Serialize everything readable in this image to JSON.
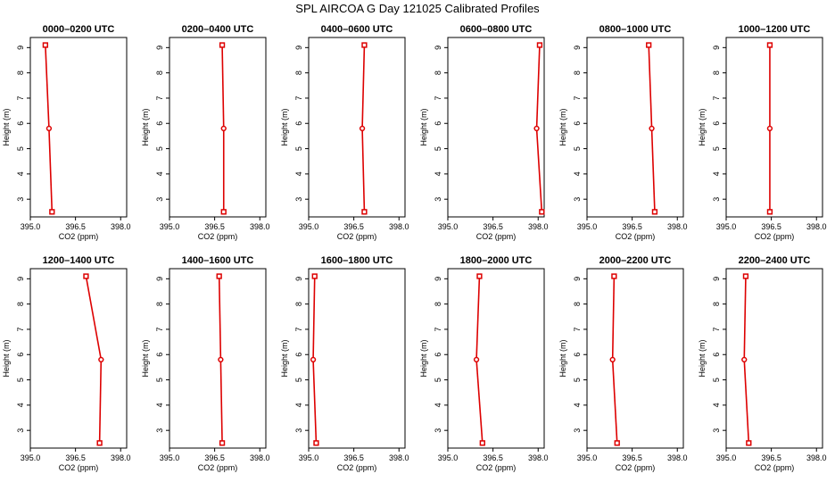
{
  "title": "SPL AIRCOA G  Day 121025  Calibrated Profiles",
  "colors": {
    "series": "#dd0000",
    "axis": "#000000",
    "background": "#ffffff"
  },
  "chart_data": [
    {
      "type": "line",
      "title": "0000–0200 UTC",
      "xlabel": "CO2 (ppm)",
      "ylabel": "Height (m)",
      "xlim": [
        395.0,
        398.2
      ],
      "ylim": [
        2.3,
        9.4
      ],
      "xticks": [
        "395.0",
        "396.5",
        "398.0"
      ],
      "yticks": [
        "3",
        "4",
        "5",
        "6",
        "7",
        "8",
        "9"
      ],
      "x": [
        395.5,
        395.62,
        395.72
      ],
      "y": [
        9.1,
        5.8,
        2.5
      ]
    },
    {
      "type": "line",
      "title": "0200–0400 UTC",
      "xlabel": "CO2 (ppm)",
      "ylabel": "Height (m)",
      "xlim": [
        395.0,
        398.2
      ],
      "ylim": [
        2.3,
        9.4
      ],
      "xticks": [
        "395.0",
        "396.5",
        "398.0"
      ],
      "yticks": [
        "3",
        "4",
        "5",
        "6",
        "7",
        "8",
        "9"
      ],
      "x": [
        396.75,
        396.8,
        396.8
      ],
      "y": [
        9.1,
        5.8,
        2.5
      ]
    },
    {
      "type": "line",
      "title": "0400–0600 UTC",
      "xlabel": "CO2 (ppm)",
      "ylabel": "Height (m)",
      "xlim": [
        395.0,
        398.2
      ],
      "ylim": [
        2.3,
        9.4
      ],
      "xticks": [
        "395.0",
        "396.5",
        "398.0"
      ],
      "yticks": [
        "3",
        "4",
        "5",
        "6",
        "7",
        "8",
        "9"
      ],
      "x": [
        396.85,
        396.78,
        396.85
      ],
      "y": [
        9.1,
        5.8,
        2.5
      ]
    },
    {
      "type": "line",
      "title": "0600–0800 UTC",
      "xlabel": "CO2 (ppm)",
      "ylabel": "Height (m)",
      "xlim": [
        395.0,
        398.2
      ],
      "ylim": [
        2.3,
        9.4
      ],
      "xticks": [
        "395.0",
        "396.5",
        "398.0"
      ],
      "yticks": [
        "3",
        "4",
        "5",
        "6",
        "7",
        "8",
        "9"
      ],
      "x": [
        398.05,
        397.95,
        398.12
      ],
      "y": [
        9.1,
        5.8,
        2.5
      ]
    },
    {
      "type": "line",
      "title": "0800–1000 UTC",
      "xlabel": "CO2 (ppm)",
      "ylabel": "Height (m)",
      "xlim": [
        395.0,
        398.2
      ],
      "ylim": [
        2.3,
        9.4
      ],
      "xticks": [
        "395.0",
        "396.5",
        "398.0"
      ],
      "yticks": [
        "3",
        "4",
        "5",
        "6",
        "7",
        "8",
        "9"
      ],
      "x": [
        397.05,
        397.15,
        397.25
      ],
      "y": [
        9.1,
        5.8,
        2.5
      ]
    },
    {
      "type": "line",
      "title": "1000–1200 UTC",
      "xlabel": "CO2 (ppm)",
      "ylabel": "Height (m)",
      "xlim": [
        395.0,
        398.2
      ],
      "ylim": [
        2.3,
        9.4
      ],
      "xticks": [
        "395.0",
        "396.5",
        "398.0"
      ],
      "yticks": [
        "3",
        "4",
        "5",
        "6",
        "7",
        "8",
        "9"
      ],
      "x": [
        396.45,
        396.45,
        396.45
      ],
      "y": [
        9.1,
        5.8,
        2.5
      ]
    },
    {
      "type": "line",
      "title": "1200–1400 UTC",
      "xlabel": "CO2 (ppm)",
      "ylabel": "Height (m)",
      "xlim": [
        395.0,
        398.2
      ],
      "ylim": [
        2.3,
        9.4
      ],
      "xticks": [
        "395.0",
        "396.5",
        "398.0"
      ],
      "yticks": [
        "3",
        "4",
        "5",
        "6",
        "7",
        "8",
        "9"
      ],
      "x": [
        396.85,
        397.35,
        397.3
      ],
      "y": [
        9.1,
        5.8,
        2.5
      ]
    },
    {
      "type": "line",
      "title": "1400–1600 UTC",
      "xlabel": "CO2 (ppm)",
      "ylabel": "Height (m)",
      "xlim": [
        395.0,
        398.2
      ],
      "ylim": [
        2.3,
        9.4
      ],
      "xticks": [
        "395.0",
        "396.5",
        "398.0"
      ],
      "yticks": [
        "3",
        "4",
        "5",
        "6",
        "7",
        "8",
        "9"
      ],
      "x": [
        396.65,
        396.7,
        396.75
      ],
      "y": [
        9.1,
        5.8,
        2.5
      ]
    },
    {
      "type": "line",
      "title": "1600–1800 UTC",
      "xlabel": "CO2 (ppm)",
      "ylabel": "Height (m)",
      "xlim": [
        395.0,
        398.2
      ],
      "ylim": [
        2.3,
        9.4
      ],
      "xticks": [
        "395.0",
        "396.5",
        "398.0"
      ],
      "yticks": [
        "3",
        "4",
        "5",
        "6",
        "7",
        "8",
        "9"
      ],
      "x": [
        395.2,
        395.15,
        395.25
      ],
      "y": [
        9.1,
        5.8,
        2.5
      ]
    },
    {
      "type": "line",
      "title": "1800–2000 UTC",
      "xlabel": "CO2 (ppm)",
      "ylabel": "Height (m)",
      "xlim": [
        395.0,
        398.2
      ],
      "ylim": [
        2.3,
        9.4
      ],
      "xticks": [
        "395.0",
        "396.5",
        "398.0"
      ],
      "yticks": [
        "3",
        "4",
        "5",
        "6",
        "7",
        "8",
        "9"
      ],
      "x": [
        396.05,
        395.95,
        396.15
      ],
      "y": [
        9.1,
        5.8,
        2.5
      ]
    },
    {
      "type": "line",
      "title": "2000–2200 UTC",
      "xlabel": "CO2 (ppm)",
      "ylabel": "Height (m)",
      "xlim": [
        395.0,
        398.2
      ],
      "ylim": [
        2.3,
        9.4
      ],
      "xticks": [
        "395.0",
        "396.5",
        "398.0"
      ],
      "yticks": [
        "3",
        "4",
        "5",
        "6",
        "7",
        "8",
        "9"
      ],
      "x": [
        395.9,
        395.85,
        396.0
      ],
      "y": [
        9.1,
        5.8,
        2.5
      ]
    },
    {
      "type": "line",
      "title": "2200–2400 UTC",
      "xlabel": "CO2 (ppm)",
      "ylabel": "Height (m)",
      "xlim": [
        395.0,
        398.2
      ],
      "ylim": [
        2.3,
        9.4
      ],
      "xticks": [
        "395.0",
        "396.5",
        "398.0"
      ],
      "yticks": [
        "3",
        "4",
        "5",
        "6",
        "7",
        "8",
        "9"
      ],
      "x": [
        395.65,
        395.6,
        395.75
      ],
      "y": [
        9.1,
        5.8,
        2.5
      ]
    }
  ]
}
